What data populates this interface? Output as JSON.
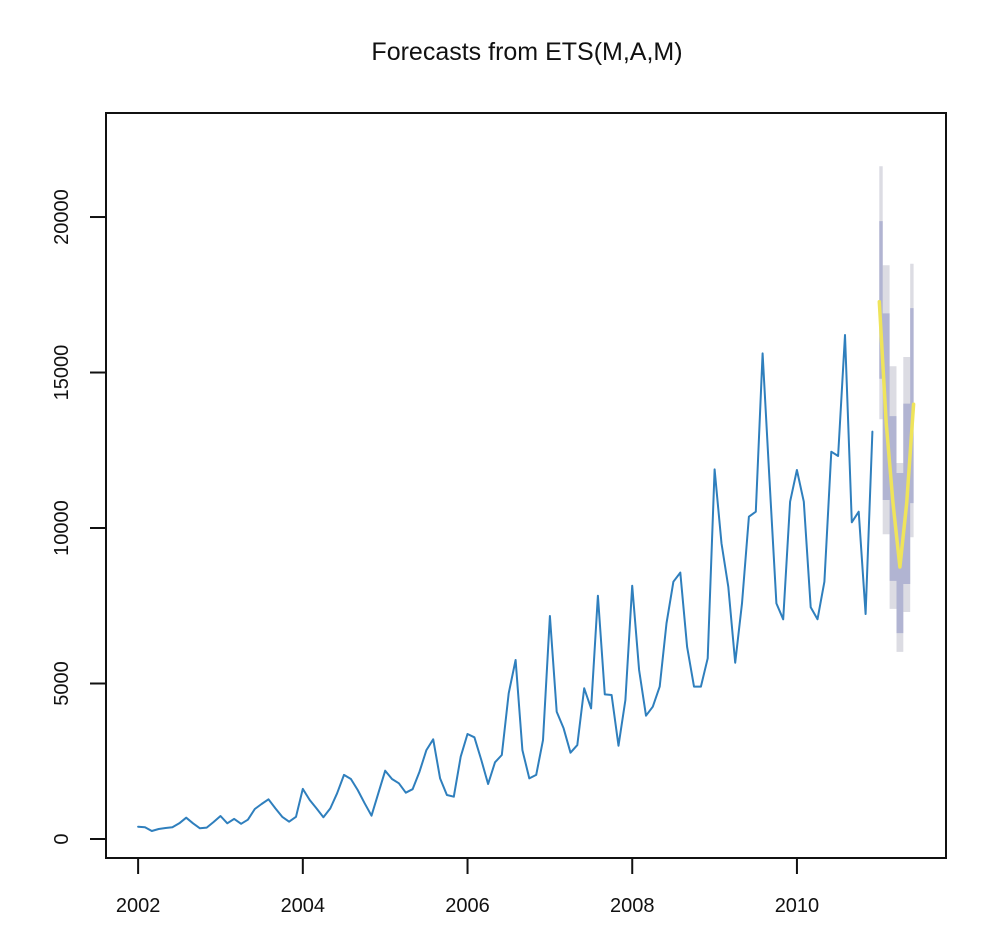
{
  "chart_data": {
    "type": "line",
    "title": "Forecasts from ETS(M,A,M)",
    "xlabel": "",
    "ylabel": "",
    "xlim": [
      2001.61,
      2011.81
    ],
    "ylim": [
      -611,
      23345
    ],
    "grid": false,
    "x_ticks": [
      2002,
      2004,
      2006,
      2008,
      2010
    ],
    "x_tick_labels": [
      "2002",
      "2004",
      "2006",
      "2008",
      "2010"
    ],
    "y_ticks": [
      0,
      5000,
      10000,
      15000,
      20000
    ],
    "y_tick_labels": [
      "0",
      "5000",
      "10000",
      "15000",
      "20000"
    ],
    "colors": {
      "observed": "#2f7fbd",
      "forecast": "#efe45a",
      "band80": "#b1b4d2",
      "band95": "#dcdce3",
      "axis": "#111111"
    },
    "series": [
      {
        "name": "observed",
        "start": 2002.0,
        "frequency": 12,
        "values": [
          395,
          375,
          257,
          320,
          353,
          375,
          505,
          685,
          505,
          345,
          365,
          545,
          740,
          505,
          645,
          490,
          620,
          965,
          1125,
          1275,
          985,
          715,
          555,
          715,
          1610,
          1255,
          985,
          700,
          985,
          1470,
          2060,
          1930,
          1575,
          1150,
          750,
          1470,
          2195,
          1930,
          1790,
          1490,
          1600,
          2165,
          2860,
          3205,
          1950,
          1415,
          1360,
          2645,
          3375,
          3270,
          2540,
          1770,
          2465,
          2700,
          4685,
          5755,
          2860,
          1950,
          2060,
          3180,
          7170,
          4090,
          3560,
          2775,
          3020,
          4845,
          4200,
          7825,
          4650,
          4630,
          3000,
          4470,
          8145,
          5435,
          3965,
          4255,
          4900,
          6935,
          8275,
          8565,
          6180,
          4900,
          4900,
          5810,
          11885,
          9505,
          8110,
          5670,
          7575,
          10365,
          10525,
          15615,
          11540,
          7575,
          7065,
          10845,
          11865,
          10845,
          7450,
          7065,
          8275,
          12455,
          12315,
          16205,
          10185,
          10525,
          7235,
          13100
        ]
      },
      {
        "name": "forecast",
        "start": 2011.0,
        "frequency": 12,
        "values": [
          17275,
          13380,
          10800,
          8745,
          10800,
          13980
        ],
        "lower80": [
          14800,
          10900,
          8300,
          6620,
          8200,
          10800
        ],
        "upper80": [
          19870,
          16900,
          13600,
          11770,
          14000,
          17070
        ],
        "lower95": [
          13500,
          9800,
          7400,
          6015,
          7300,
          9700
        ],
        "upper95": [
          21630,
          18450,
          15200,
          12090,
          15500,
          18500
        ]
      }
    ]
  }
}
